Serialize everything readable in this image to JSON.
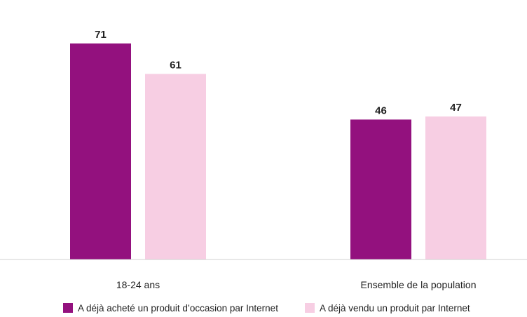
{
  "chart_data": {
    "type": "bar",
    "title": "",
    "xlabel": "",
    "ylabel": "",
    "ylim": [
      0,
      80
    ],
    "categories": [
      "18-24 ans",
      "Ensemble de la population"
    ],
    "series": [
      {
        "name": "A déjà acheté un produit d’occasion par Internet",
        "values": [
          71,
          46
        ],
        "color": "#93117E"
      },
      {
        "name": "A déjà vendu un produit par Internet",
        "values": [
          61,
          47
        ],
        "color": "#F7CEE3"
      }
    ],
    "legend": "bottom",
    "grid": false,
    "data_labels": true
  }
}
